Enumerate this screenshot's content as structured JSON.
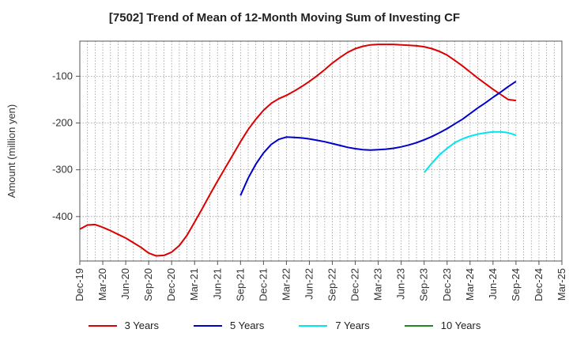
{
  "chart_data": {
    "type": "line",
    "title": "[7502]  Trend of Mean of 12-Month Moving Sum of Investing CF",
    "ylabel": "Amount (million yen)",
    "xlabel": "",
    "ylim": [
      -495,
      -25
    ],
    "yticks": [
      -400,
      -300,
      -200,
      -100
    ],
    "xticks": [
      "Dec-19",
      "Mar-20",
      "Jun-20",
      "Sep-20",
      "Dec-20",
      "Mar-21",
      "Jun-21",
      "Sep-21",
      "Dec-21",
      "Mar-22",
      "Jun-22",
      "Sep-22",
      "Dec-22",
      "Mar-23",
      "Jun-23",
      "Sep-23",
      "Dec-23",
      "Mar-24",
      "Jun-24",
      "Sep-24",
      "Dec-24",
      "Mar-25"
    ],
    "grid": true,
    "legend_position": "bottom",
    "series": [
      {
        "name": "3 Years",
        "color": "#dd0000",
        "x": [
          "Dec-19",
          "Jan-20",
          "Feb-20",
          "Mar-20",
          "Apr-20",
          "May-20",
          "Jun-20",
          "Jul-20",
          "Aug-20",
          "Sep-20",
          "Oct-20",
          "Nov-20",
          "Dec-20",
          "Jan-21",
          "Feb-21",
          "Mar-21",
          "Apr-21",
          "May-21",
          "Jun-21",
          "Jul-21",
          "Aug-21",
          "Sep-21",
          "Oct-21",
          "Nov-21",
          "Dec-21",
          "Jan-22",
          "Feb-22",
          "Mar-22",
          "Apr-22",
          "May-22",
          "Jun-22",
          "Jul-22",
          "Aug-22",
          "Sep-22",
          "Oct-22",
          "Nov-22",
          "Dec-22",
          "Jan-23",
          "Feb-23",
          "Mar-23",
          "Apr-23",
          "May-23",
          "Jun-23",
          "Jul-23",
          "Aug-23",
          "Sep-23",
          "Oct-23",
          "Nov-23",
          "Dec-23",
          "Jan-24",
          "Feb-24",
          "Mar-24",
          "Apr-24",
          "May-24",
          "Jun-24",
          "Jul-24",
          "Aug-24",
          "Sep-24"
        ],
        "values": [
          -427,
          -418,
          -417,
          -423,
          -430,
          -438,
          -446,
          -456,
          -466,
          -478,
          -484,
          -483,
          -476,
          -462,
          -440,
          -412,
          -383,
          -353,
          -324,
          -296,
          -268,
          -240,
          -214,
          -192,
          -173,
          -158,
          -148,
          -141,
          -132,
          -122,
          -111,
          -99,
          -86,
          -72,
          -60,
          -49,
          -41,
          -36,
          -33,
          -32,
          -32,
          -32,
          -33,
          -34,
          -35,
          -37,
          -41,
          -47,
          -55,
          -66,
          -78,
          -91,
          -104,
          -116,
          -128,
          -139,
          -150,
          -152
        ]
      },
      {
        "name": "5 Years",
        "color": "#0000cc",
        "x": [
          "Sep-21",
          "Oct-21",
          "Nov-21",
          "Dec-21",
          "Jan-22",
          "Feb-22",
          "Mar-22",
          "Apr-22",
          "May-22",
          "Jun-22",
          "Jul-22",
          "Aug-22",
          "Sep-22",
          "Oct-22",
          "Nov-22",
          "Dec-22",
          "Jan-23",
          "Feb-23",
          "Mar-23",
          "Apr-23",
          "May-23",
          "Jun-23",
          "Jul-23",
          "Aug-23",
          "Sep-23",
          "Oct-23",
          "Nov-23",
          "Dec-23",
          "Jan-24",
          "Feb-24",
          "Mar-24",
          "Apr-24",
          "May-24",
          "Jun-24",
          "Jul-24",
          "Aug-24",
          "Sep-24"
        ],
        "values": [
          -355,
          -318,
          -288,
          -264,
          -246,
          -235,
          -230,
          -231,
          -232,
          -234,
          -237,
          -240,
          -244,
          -248,
          -252,
          -255,
          -257,
          -258,
          -257,
          -256,
          -254,
          -251,
          -247,
          -242,
          -236,
          -229,
          -221,
          -212,
          -202,
          -192,
          -180,
          -168,
          -157,
          -145,
          -134,
          -122,
          -111
        ]
      },
      {
        "name": "7 Years",
        "color": "#00e5ee",
        "x": [
          "Sep-23",
          "Oct-23",
          "Nov-23",
          "Dec-23",
          "Jan-24",
          "Feb-24",
          "Mar-24",
          "Apr-24",
          "May-24",
          "Jun-24",
          "Jul-24",
          "Aug-24",
          "Sep-24"
        ],
        "values": [
          -306,
          -286,
          -268,
          -254,
          -242,
          -234,
          -228,
          -224,
          -221,
          -219,
          -219,
          -221,
          -226
        ]
      },
      {
        "name": "10 Years",
        "color": "#228822",
        "x": [],
        "values": []
      }
    ]
  }
}
